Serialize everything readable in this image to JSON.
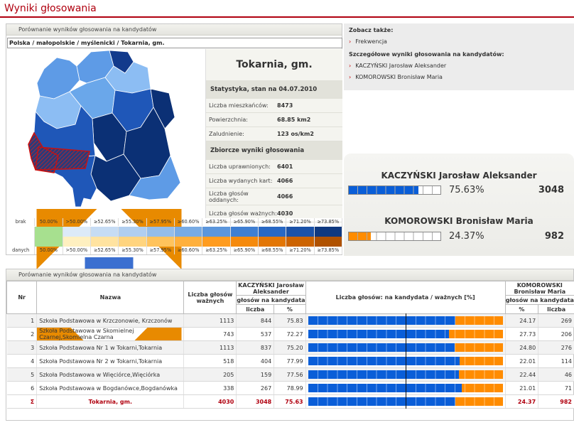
{
  "page_title": "Wyniki głosowania",
  "map_panel": {
    "header": "Porównanie wyników głosowania na kandydatów",
    "breadcrumb": "Polska / małopolskie / myślenicki / Tokarnia, gm."
  },
  "stats": {
    "title": "Tokarnia, gm.",
    "section_stats": "Statystyka, stan na 04.07.2010",
    "rows_stats": [
      {
        "label": "Liczba mieszkańców:",
        "value": "8473"
      },
      {
        "label": "Powierzchnia:",
        "value": "68.85 km2"
      },
      {
        "label": "Zaludnienie:",
        "value": "123 os/km2"
      }
    ],
    "section_results": "Zbiorcze wyniki głosowania",
    "rows_results": [
      {
        "label": "Liczba uprawnionych:",
        "value": "6401"
      },
      {
        "label": "Liczba wydanych kart:",
        "value": "4066"
      },
      {
        "label": "Liczba głosów oddanych:",
        "value": "4066"
      },
      {
        "label": "Liczba głosów ważnych:",
        "value": "4030"
      }
    ]
  },
  "legend": {
    "row1": [
      "brak",
      "50.00%",
      ">50.00%",
      "≥52.65%",
      "≥55.30%",
      "≥57.95%",
      "≥60.60%",
      "≥63.25%",
      "≥65.90%",
      "≥68.55%",
      "≥71.20%",
      "≥73.85%"
    ],
    "row2": [
      "danych",
      "50.00%",
      ">50.00%",
      "≥52.65%",
      "≥55.30%",
      "≥57.95%",
      "≥60.60%",
      "≥63.25%",
      "≥65.90%",
      "≥68.55%",
      "≥71.20%",
      "≥73.85%"
    ],
    "colors_top": [
      "#ffffff",
      "#a7e08f",
      "#dceaf8",
      "#c6dcf4",
      "#b0cef0",
      "#94bdea",
      "#78abe4",
      "#5b96dc",
      "#3f7fd2",
      "#2868c4",
      "#1b52a8",
      "#0f3980"
    ],
    "colors_bottom": [
      "#ffffff",
      "#a7e08f",
      "#fff0c0",
      "#ffe3a0",
      "#ffd47e",
      "#ffc35c",
      "#ffb03c",
      "#ff9c1f",
      "#f58a0d",
      "#e37605",
      "#cc6300",
      "#b05200"
    ]
  },
  "see_also": {
    "heading": "Zobacz także:",
    "links": [
      "Frekwencja"
    ],
    "heading2": "Szczegółowe wyniki głosowania na kandydatów:",
    "candidate_links": [
      "KACZYŃSKI Jarosław Aleksander",
      "KOMOROWSKI Bronisław Maria"
    ]
  },
  "candidates": [
    {
      "name": "KACZYŃSKI Jarosław Aleksander",
      "percent": "75.63%",
      "votes": "3048",
      "share": 0.7563,
      "color": "#0a5ed8"
    },
    {
      "name": "KOMOROWSKI Bronisław Maria",
      "percent": "24.37%",
      "votes": "982",
      "share": 0.2437,
      "color": "#ff8c00"
    }
  ],
  "table": {
    "header": "Porównanie wyników głosowania na kandydatów",
    "col_nr": "Nr",
    "col_name": "Nazwa",
    "col_valid": "Liczba głosów ważnych",
    "cand1": "KACZYŃSKI Jarosław Aleksander",
    "cand2": "KOMOROWSKI Bronisław Maria",
    "votes_for": "głosów na kandydata",
    "col_count": "liczba",
    "col_pct": "%",
    "bar_title": "Liczba głosów: na kandydata / ważnych [%]",
    "rows": [
      {
        "nr": "1",
        "name": "Szkoła Podstawowa w Krzczonowie, Krzczonów",
        "valid": "1113",
        "k_count": "844",
        "k_pct": "75.83",
        "m_pct": "24.17",
        "m_count": "269",
        "share": 0.7583
      },
      {
        "nr": "2",
        "name": "Szkoła Podstawowa w Skomielnej Czarnej,Skomielna Czarna",
        "valid": "743",
        "k_count": "537",
        "k_pct": "72.27",
        "m_pct": "27.73",
        "m_count": "206",
        "share": 0.7227
      },
      {
        "nr": "3",
        "name": "Szkoła Podstawowa Nr 1 w Tokarni,Tokarnia",
        "valid": "1113",
        "k_count": "837",
        "k_pct": "75.20",
        "m_pct": "24.80",
        "m_count": "276",
        "share": 0.752
      },
      {
        "nr": "4",
        "name": "Szkoła Podstawowa Nr 2 w Tokarni,Tokarnia",
        "valid": "518",
        "k_count": "404",
        "k_pct": "77.99",
        "m_pct": "22.01",
        "m_count": "114",
        "share": 0.7799
      },
      {
        "nr": "5",
        "name": "Szkoła Podstawowa w Więciórce,Więciórka",
        "valid": "205",
        "k_count": "159",
        "k_pct": "77.56",
        "m_pct": "22.44",
        "m_count": "46",
        "share": 0.7756
      },
      {
        "nr": "6",
        "name": "Szkoła Podstawowa w Bogdanówce,Bogdanówka",
        "valid": "338",
        "k_count": "267",
        "k_pct": "78.99",
        "m_pct": "21.01",
        "m_count": "71",
        "share": 0.7899
      }
    ],
    "total": {
      "nr": "Σ",
      "name": "Tokarnia, gm.",
      "valid": "4030",
      "k_count": "3048",
      "k_pct": "75.63",
      "m_pct": "24.37",
      "m_count": "982",
      "share": 0.7563
    }
  }
}
